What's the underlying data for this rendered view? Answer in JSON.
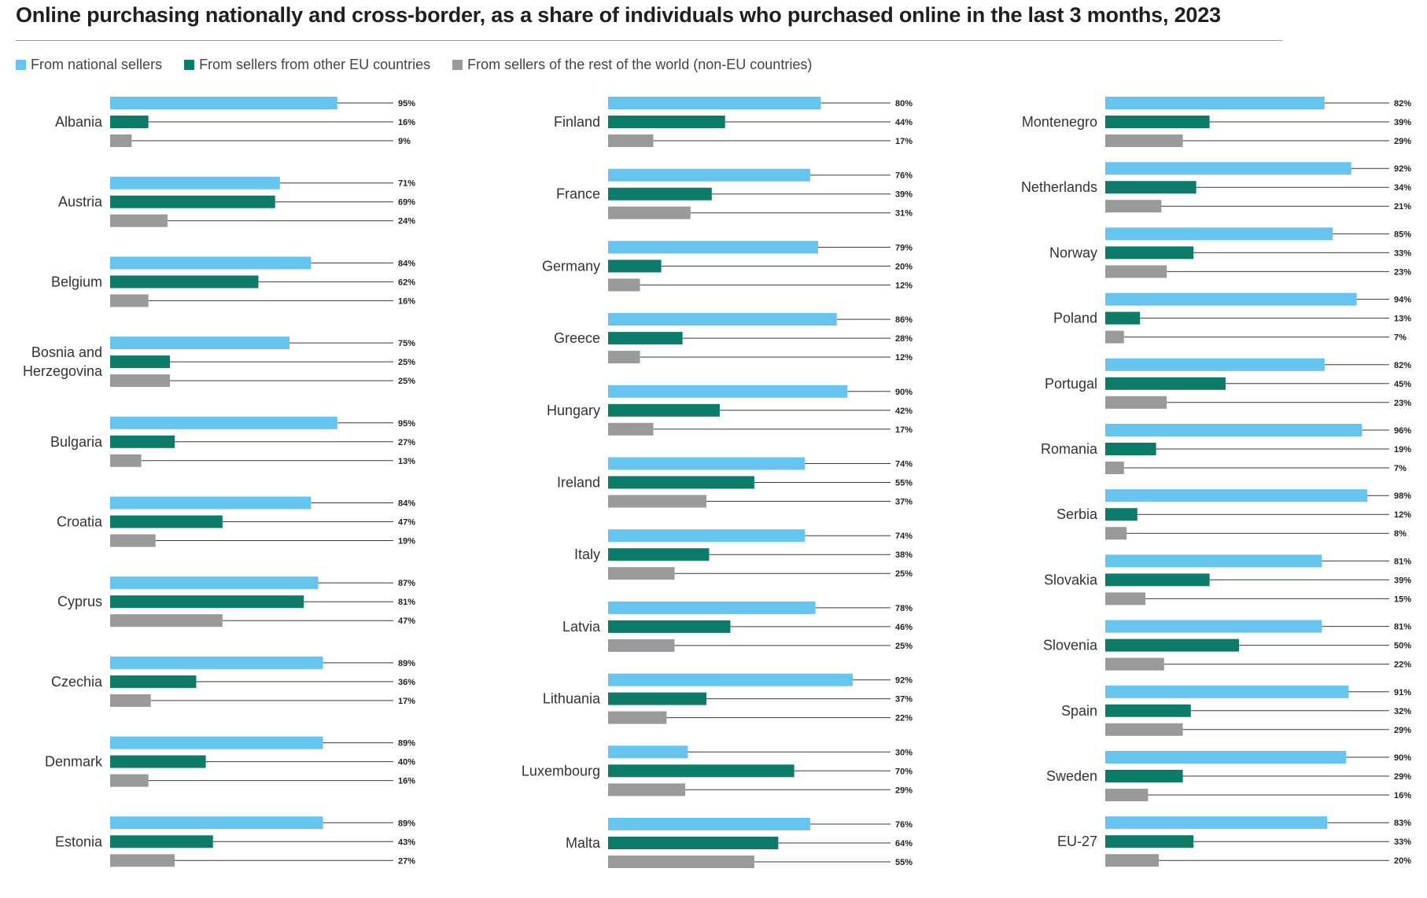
{
  "chart_data": {
    "type": "bar",
    "orientation": "horizontal",
    "title": "Online purchasing nationally and cross-border, as a share of individuals who purchased online in the last 3 months, 2023",
    "xlim": [
      0,
      100
    ],
    "unit": "%",
    "legend_position": "top-left",
    "series": [
      {
        "key": "national",
        "name": "From national sellers",
        "color": "#66c4ee"
      },
      {
        "key": "eu",
        "name": "From sellers from other EU countries",
        "color": "#0e7a68"
      },
      {
        "key": "non_eu",
        "name": "From sellers of the rest of the world (non-EU countries)",
        "color": "#9a9a9b"
      }
    ],
    "panels": [
      {
        "countries": [
          {
            "name": "Albania",
            "values": [
              95,
              16,
              9
            ]
          },
          {
            "name": "Austria",
            "values": [
              71,
              69,
              24
            ]
          },
          {
            "name": "Belgium",
            "values": [
              84,
              62,
              16
            ]
          },
          {
            "name": "Bosnia and Herzegovina",
            "label_lines": [
              "Bosnia and",
              "Herzegovina"
            ],
            "values": [
              75,
              25,
              25
            ]
          },
          {
            "name": "Bulgaria",
            "values": [
              95,
              27,
              13
            ]
          },
          {
            "name": "Croatia",
            "values": [
              84,
              47,
              19
            ]
          },
          {
            "name": "Cyprus",
            "values": [
              87,
              81,
              47
            ]
          },
          {
            "name": "Czechia",
            "values": [
              89,
              36,
              17
            ]
          },
          {
            "name": "Denmark",
            "values": [
              89,
              40,
              16
            ]
          },
          {
            "name": "Estonia",
            "values": [
              89,
              43,
              27
            ]
          }
        ]
      },
      {
        "countries": [
          {
            "name": "Finland",
            "values": [
              80,
              44,
              17
            ]
          },
          {
            "name": "France",
            "values": [
              76,
              39,
              31
            ]
          },
          {
            "name": "Germany",
            "values": [
              79,
              20,
              12
            ]
          },
          {
            "name": "Greece",
            "values": [
              86,
              28,
              12
            ]
          },
          {
            "name": "Hungary",
            "values": [
              90,
              42,
              17
            ]
          },
          {
            "name": "Ireland",
            "values": [
              74,
              55,
              37
            ]
          },
          {
            "name": "Italy",
            "values": [
              74,
              38,
              25
            ]
          },
          {
            "name": "Latvia",
            "values": [
              78,
              46,
              25
            ]
          },
          {
            "name": "Lithuania",
            "values": [
              92,
              37,
              22
            ]
          },
          {
            "name": "Luxembourg",
            "values": [
              30,
              70,
              29
            ]
          },
          {
            "name": "Malta",
            "values": [
              76,
              64,
              55
            ]
          }
        ]
      },
      {
        "countries": [
          {
            "name": "Montenegro",
            "values": [
              82,
              39,
              29
            ]
          },
          {
            "name": "Netherlands",
            "values": [
              92,
              34,
              21
            ]
          },
          {
            "name": "Norway",
            "values": [
              85,
              33,
              23
            ]
          },
          {
            "name": "Poland",
            "values": [
              94,
              13,
              7
            ]
          },
          {
            "name": "Portugal",
            "values": [
              82,
              45,
              23
            ]
          },
          {
            "name": "Romania",
            "values": [
              96,
              19,
              7
            ]
          },
          {
            "name": "Serbia",
            "values": [
              98,
              12,
              8
            ]
          },
          {
            "name": "Slovakia",
            "values": [
              81,
              39,
              15
            ]
          },
          {
            "name": "Slovenia",
            "values": [
              81,
              50,
              22
            ]
          },
          {
            "name": "Spain",
            "values": [
              91,
              32,
              29
            ]
          },
          {
            "name": "Sweden",
            "values": [
              90,
              29,
              16
            ]
          },
          {
            "name": "EU-27",
            "values": [
              83,
              33,
              20
            ]
          }
        ]
      }
    ]
  }
}
